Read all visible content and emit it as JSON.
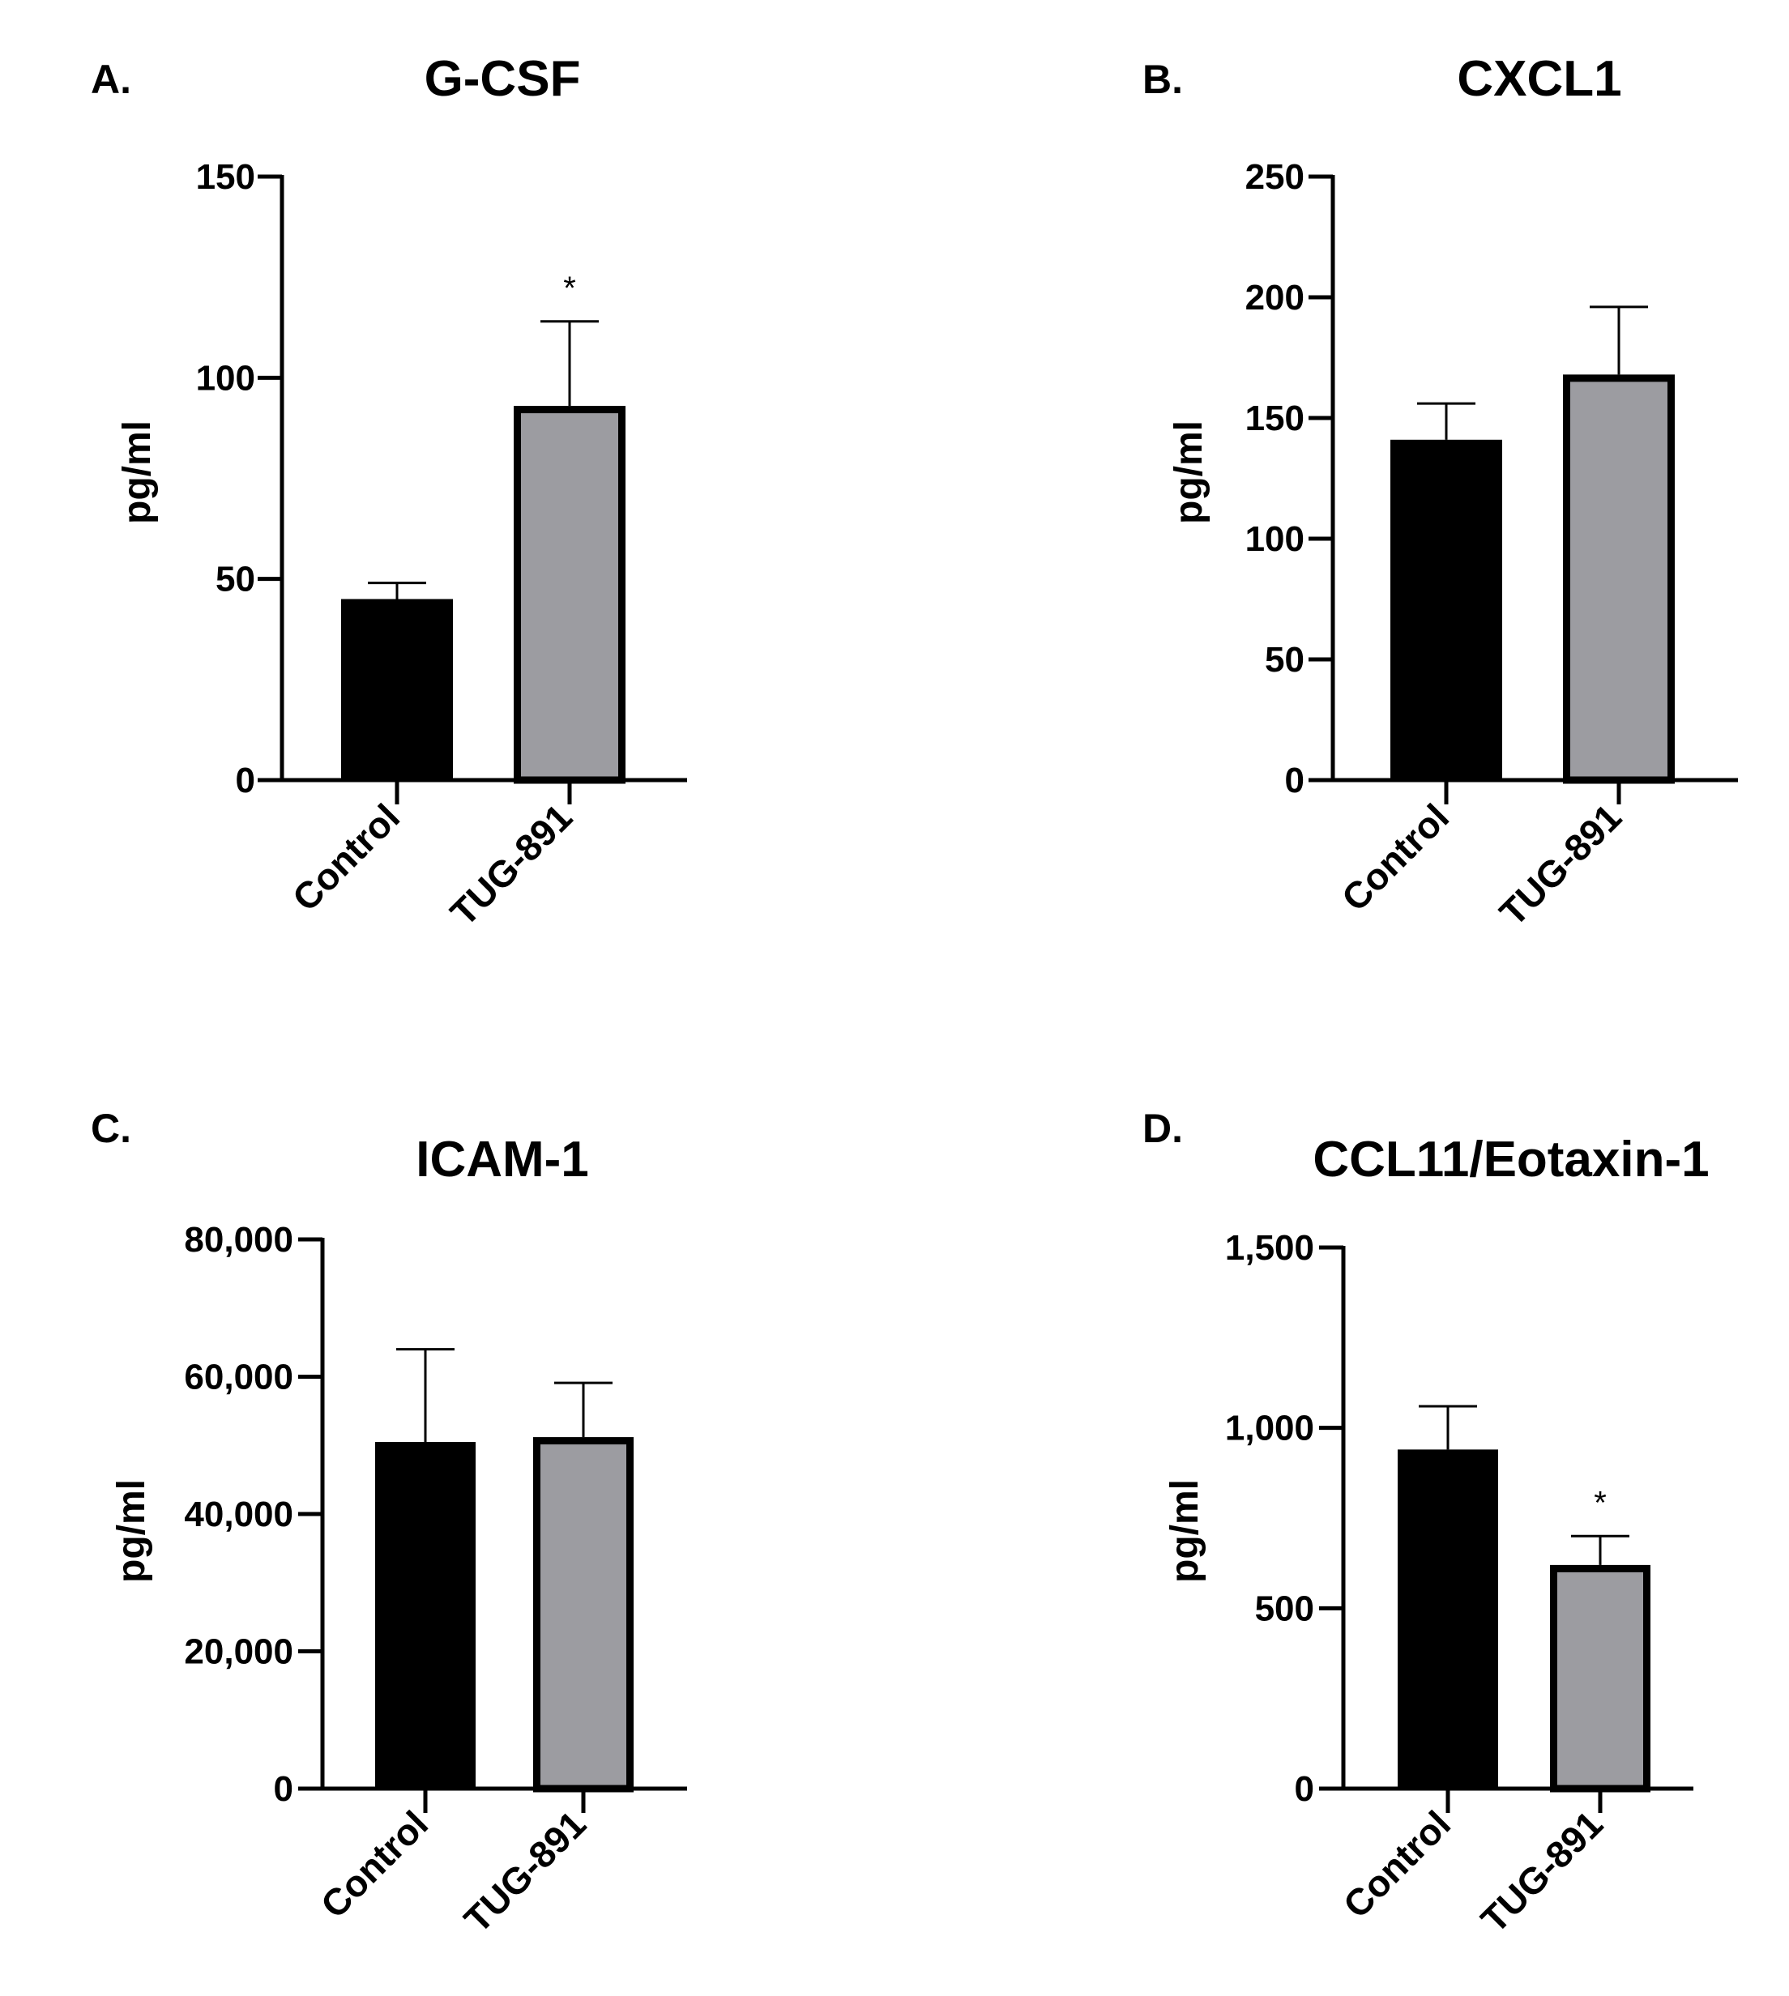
{
  "chart_data": [
    {
      "panel": "A.",
      "type": "bar",
      "title": "G-CSF",
      "ylabel": "pg/ml",
      "categories": [
        "Control",
        "TUG-891"
      ],
      "values": [
        45,
        93
      ],
      "errors": [
        4,
        21
      ],
      "significance": [
        "",
        "*"
      ],
      "colors": [
        "#000000",
        "#9c9ca1"
      ],
      "ylim": [
        0,
        150
      ],
      "yticks": [
        0,
        50,
        100,
        150
      ],
      "ytick_labels": [
        "0",
        "50",
        "100",
        "150"
      ],
      "grid": false
    },
    {
      "panel": "B.",
      "type": "bar",
      "title": "CXCL1",
      "ylabel": "pg/ml",
      "categories": [
        "Control",
        "TUG-891"
      ],
      "values": [
        141,
        168
      ],
      "errors": [
        15,
        28
      ],
      "significance": [
        "",
        ""
      ],
      "colors": [
        "#000000",
        "#9c9ca1"
      ],
      "ylim": [
        0,
        250
      ],
      "yticks": [
        0,
        50,
        100,
        150,
        200,
        250
      ],
      "ytick_labels": [
        "0",
        "50",
        "100",
        "150",
        "200",
        "250"
      ],
      "grid": false
    },
    {
      "panel": "C.",
      "type": "bar",
      "title": "ICAM-1",
      "ylabel": "pg/ml",
      "categories": [
        "Control",
        "TUG-891"
      ],
      "values": [
        50500,
        51200
      ],
      "errors": [
        13500,
        7900
      ],
      "significance": [
        "",
        ""
      ],
      "colors": [
        "#000000",
        "#9c9ca1"
      ],
      "ylim": [
        0,
        80000
      ],
      "yticks": [
        0,
        20000,
        40000,
        60000,
        80000
      ],
      "ytick_labels": [
        "0",
        "20,000",
        "40,000",
        "60,000",
        "80,000"
      ],
      "grid": false
    },
    {
      "panel": "D.",
      "type": "bar",
      "title": "CCL11/Eotaxin-1",
      "ylabel": "pg/ml",
      "categories": [
        "Control",
        "TUG-891"
      ],
      "values": [
        940,
        620
      ],
      "errors": [
        120,
        80
      ],
      "significance": [
        "",
        "*"
      ],
      "colors": [
        "#000000",
        "#9c9ca1"
      ],
      "ylim": [
        0,
        1500
      ],
      "yticks": [
        0,
        500,
        1000,
        1500
      ],
      "ytick_labels": [
        "0",
        "500",
        "1,000",
        "1,500"
      ],
      "grid": false
    }
  ]
}
